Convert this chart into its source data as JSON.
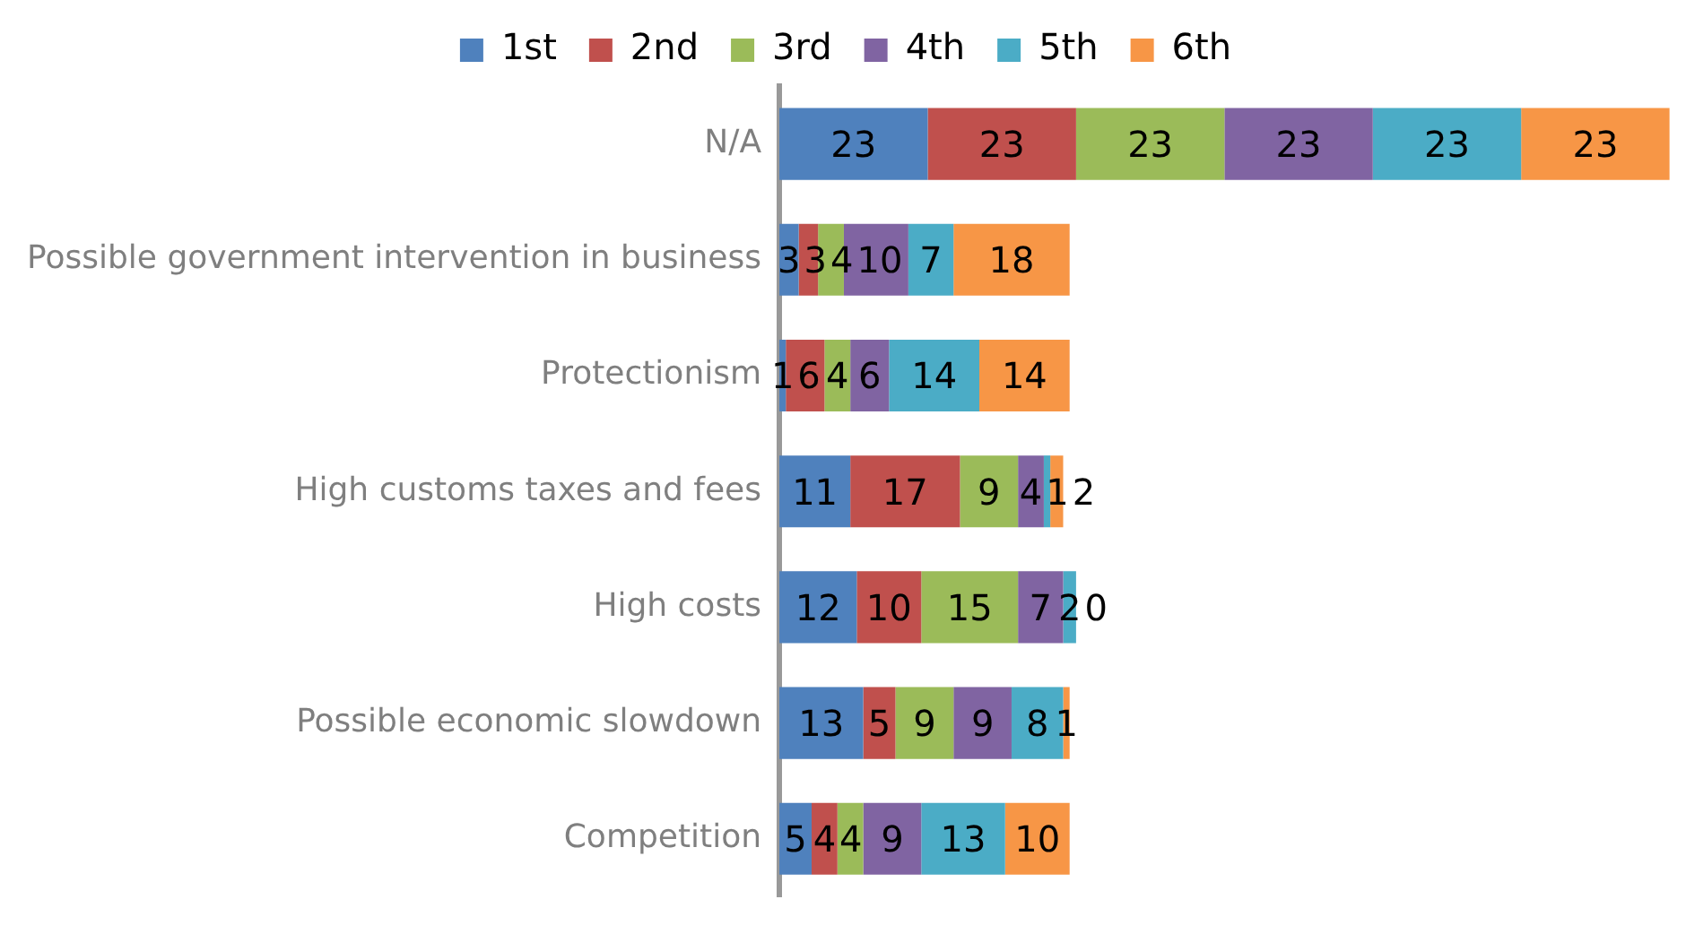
{
  "chart_data": {
    "type": "bar",
    "orientation": "horizontal",
    "stacked": true,
    "data_labels": true,
    "legend": "top",
    "categories": [
      "N/A",
      "Possible government intervention in business",
      "Protectionism",
      "High customs taxes and fees",
      "High costs",
      "Possible economic slowdown",
      "Competition"
    ],
    "series": [
      {
        "name": "1st",
        "color": "#4f81bd",
        "values": [
          23,
          3,
          1,
          11,
          12,
          13,
          5
        ]
      },
      {
        "name": "2nd",
        "color": "#c0504d",
        "values": [
          23,
          3,
          6,
          17,
          10,
          5,
          4
        ]
      },
      {
        "name": "3rd",
        "color": "#9bbb59",
        "values": [
          23,
          4,
          4,
          9,
          15,
          9,
          4
        ]
      },
      {
        "name": "4th",
        "color": "#8064a2",
        "values": [
          23,
          10,
          6,
          4,
          7,
          9,
          9
        ]
      },
      {
        "name": "5th",
        "color": "#4bacc6",
        "values": [
          23,
          7,
          14,
          1,
          2,
          8,
          13
        ]
      },
      {
        "name": "6th",
        "color": "#f79646",
        "values": [
          23,
          18,
          14,
          2,
          0,
          1,
          10
        ]
      }
    ]
  }
}
